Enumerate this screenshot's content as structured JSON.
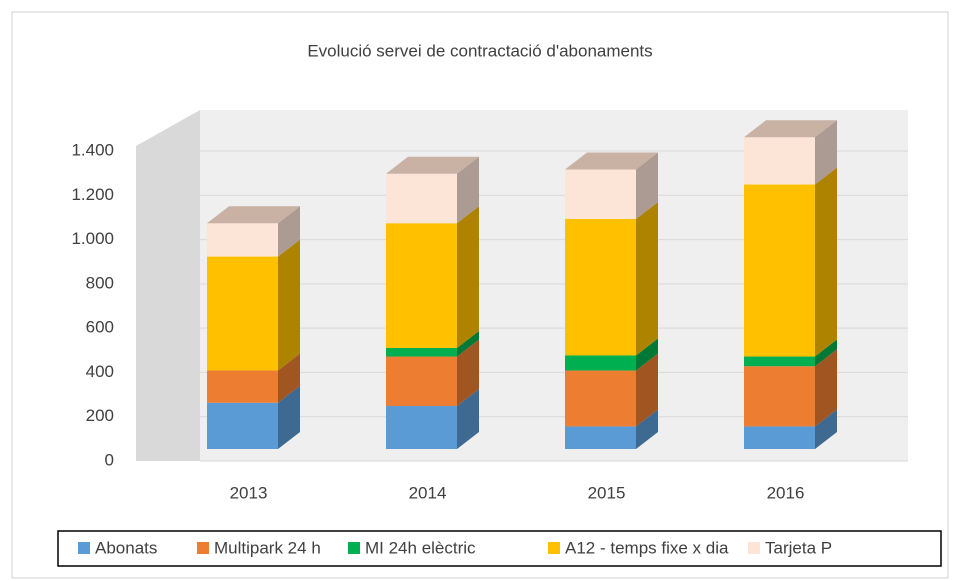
{
  "chart_data": {
    "type": "bar3d_stacked",
    "title": "Evolució servei de contractació  d'abonaments",
    "categories": [
      "2013",
      "2014",
      "2015",
      "2016"
    ],
    "series": [
      {
        "name": "Abonats",
        "color": "#5b9bd5",
        "values": [
          215,
          200,
          105,
          105
        ]
      },
      {
        "name": "Multipark 24 h",
        "color": "#ed7d31",
        "values": [
          150,
          230,
          260,
          280
        ]
      },
      {
        "name": "MI 24h elèctric",
        "color": "#00b050",
        "values": [
          0,
          40,
          70,
          45
        ]
      },
      {
        "name": "A12 - temps fixe x dia",
        "color": "#ffc000",
        "values": [
          530,
          580,
          635,
          800
        ]
      },
      {
        "name": "Tarjeta P",
        "color": "#fce4d6",
        "values": [
          155,
          230,
          230,
          220
        ]
      }
    ],
    "ylim": [
      0,
      1400
    ],
    "yticks": [
      0,
      200,
      400,
      600,
      800,
      {
        "value": 1000,
        "label": "1.000"
      },
      {
        "value": 1200,
        "label": "1.200"
      },
      {
        "value": 1400,
        "label": "1.400"
      }
    ],
    "grid": true,
    "legend": "bottom"
  }
}
